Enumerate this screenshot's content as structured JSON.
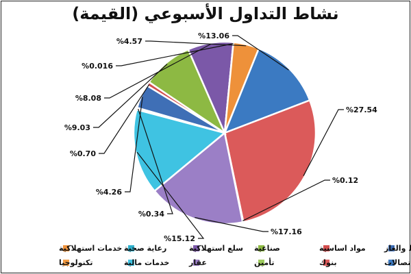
{
  "chart_data": {
    "type": "pie",
    "title": "نشاط التداول الأسبوعي (القيمة)",
    "slices": [
      {
        "name": "اتصالات",
        "value": 13.06,
        "label": "%13.06",
        "color": "#3b7ac2"
      },
      {
        "name": "بنوك",
        "value": 27.54,
        "label": "%27.54",
        "color": "#db5a5a"
      },
      {
        "name": "تأمين",
        "value": 0.12,
        "label": "%0.12",
        "color": "#9ecb5e"
      },
      {
        "name": "عقار",
        "value": 17.16,
        "label": "%17.16",
        "color": "#9b7fc6"
      },
      {
        "name": "خدمات مالية",
        "value": 15.12,
        "label": "%15.12",
        "color": "#3fc3e2"
      },
      {
        "name": "تكنولوجيا",
        "value": 0.34,
        "label": "%0.34",
        "color": "#f39c45"
      },
      {
        "name": "النفط والغاز",
        "value": 4.26,
        "label": "%4.26",
        "color": "#3f6fb6"
      },
      {
        "name": "مواد اساسية",
        "value": 0.7,
        "label": "%0.70",
        "color": "#d24e4e"
      },
      {
        "name": "صناعية",
        "value": 9.03,
        "label": "%9.03",
        "color": "#8db943"
      },
      {
        "name": "سلع استهلاكية",
        "value": 8.08,
        "label": "%8.08",
        "color": "#7b58a8"
      },
      {
        "name": "رعاية صحية",
        "value": 0.016,
        "label": "%0.016",
        "color": "#2fb0cc"
      },
      {
        "name": "خدمات استهلاكية",
        "value": 4.57,
        "label": "%4.57",
        "color": "#ee913a"
      }
    ],
    "legend_rows": [
      [
        "النفط والغاز",
        "مواد اساسية",
        "صناعية",
        "سلع استهلاكية",
        "رعاية صحية",
        "خدمات استهلاكية"
      ],
      [
        "اتصالات",
        "بنوك",
        "تأمين",
        "عقار",
        "خدمات مالية",
        "تكنولوجيا"
      ]
    ],
    "legend": "bottom"
  }
}
